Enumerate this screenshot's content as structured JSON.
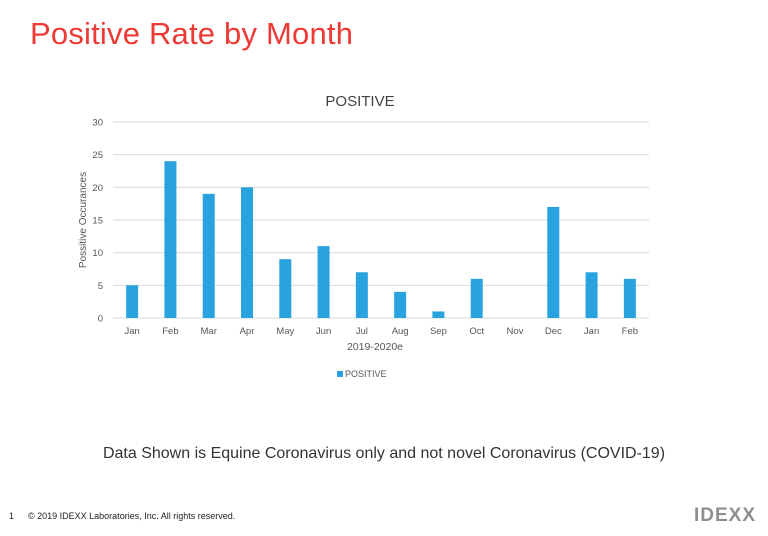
{
  "slide": {
    "title": "Positive Rate by Month",
    "caption": "Data Shown is Equine Coronavirus only and not novel Coronavirus (COVID-19)",
    "page_number": "1",
    "copyright": "© 2019 IDEXX Laboratories, Inc. All rights reserved.",
    "logo_text": "IDEXX"
  },
  "colors": {
    "title": "#ee3a35",
    "bar": "#29a3df",
    "grid": "#d9d9d9"
  },
  "chart_data": {
    "type": "bar",
    "title": "POSITIVE",
    "xlabel": "2019-2020e",
    "ylabel": "Possitive Occurances",
    "categories": [
      "Jan",
      "Feb",
      "Mar",
      "Apr",
      "May",
      "Jun",
      "Jul",
      "Aug",
      "Sep",
      "Oct",
      "Nov",
      "Dec",
      "Jan",
      "Feb"
    ],
    "series": [
      {
        "name": "POSITIVE",
        "values": [
          5,
          24,
          19,
          20,
          9,
          11,
          7,
          4,
          1,
          6,
          0,
          17,
          7,
          6
        ]
      }
    ],
    "ylim": [
      0,
      30
    ],
    "yticks": [
      "0",
      "5",
      "10",
      "15",
      "20",
      "25",
      "30"
    ],
    "grid": true,
    "legend": "bottom"
  }
}
